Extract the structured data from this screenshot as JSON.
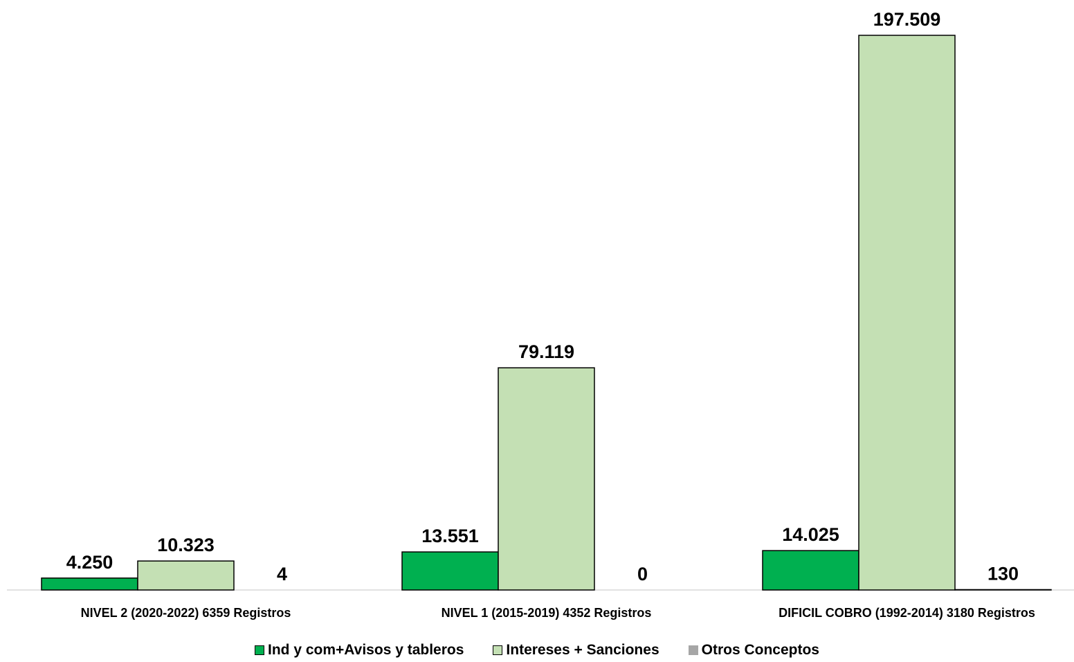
{
  "chart_data": {
    "type": "bar",
    "categories": [
      "NIVEL 2 (2020-2022) 6359 Registros",
      "NIVEL 1 (2015-2019) 4352 Registros",
      "DIFICIL COBRO (1992-2014) 3180 Registros"
    ],
    "series": [
      {
        "name": "Ind y com+Avisos y tableros",
        "values": [
          4250,
          13551,
          14025
        ],
        "labels": [
          "4.250",
          "13.551",
          "14.025"
        ],
        "color": "#00b050"
      },
      {
        "name": "Intereses + Sanciones",
        "values": [
          10323,
          79119,
          197509
        ],
        "labels": [
          "10.323",
          "79.119",
          "197.509"
        ],
        "color": "#c4e0b4"
      },
      {
        "name": "Otros Conceptos",
        "values": [
          4,
          0,
          130
        ],
        "labels": [
          "4",
          "0",
          "130"
        ],
        "color": "#a6a6a6"
      }
    ],
    "title": "",
    "xlabel": "",
    "ylabel": "",
    "ylim": [
      0,
      197509
    ],
    "grid": false,
    "legend_position": "bottom"
  }
}
